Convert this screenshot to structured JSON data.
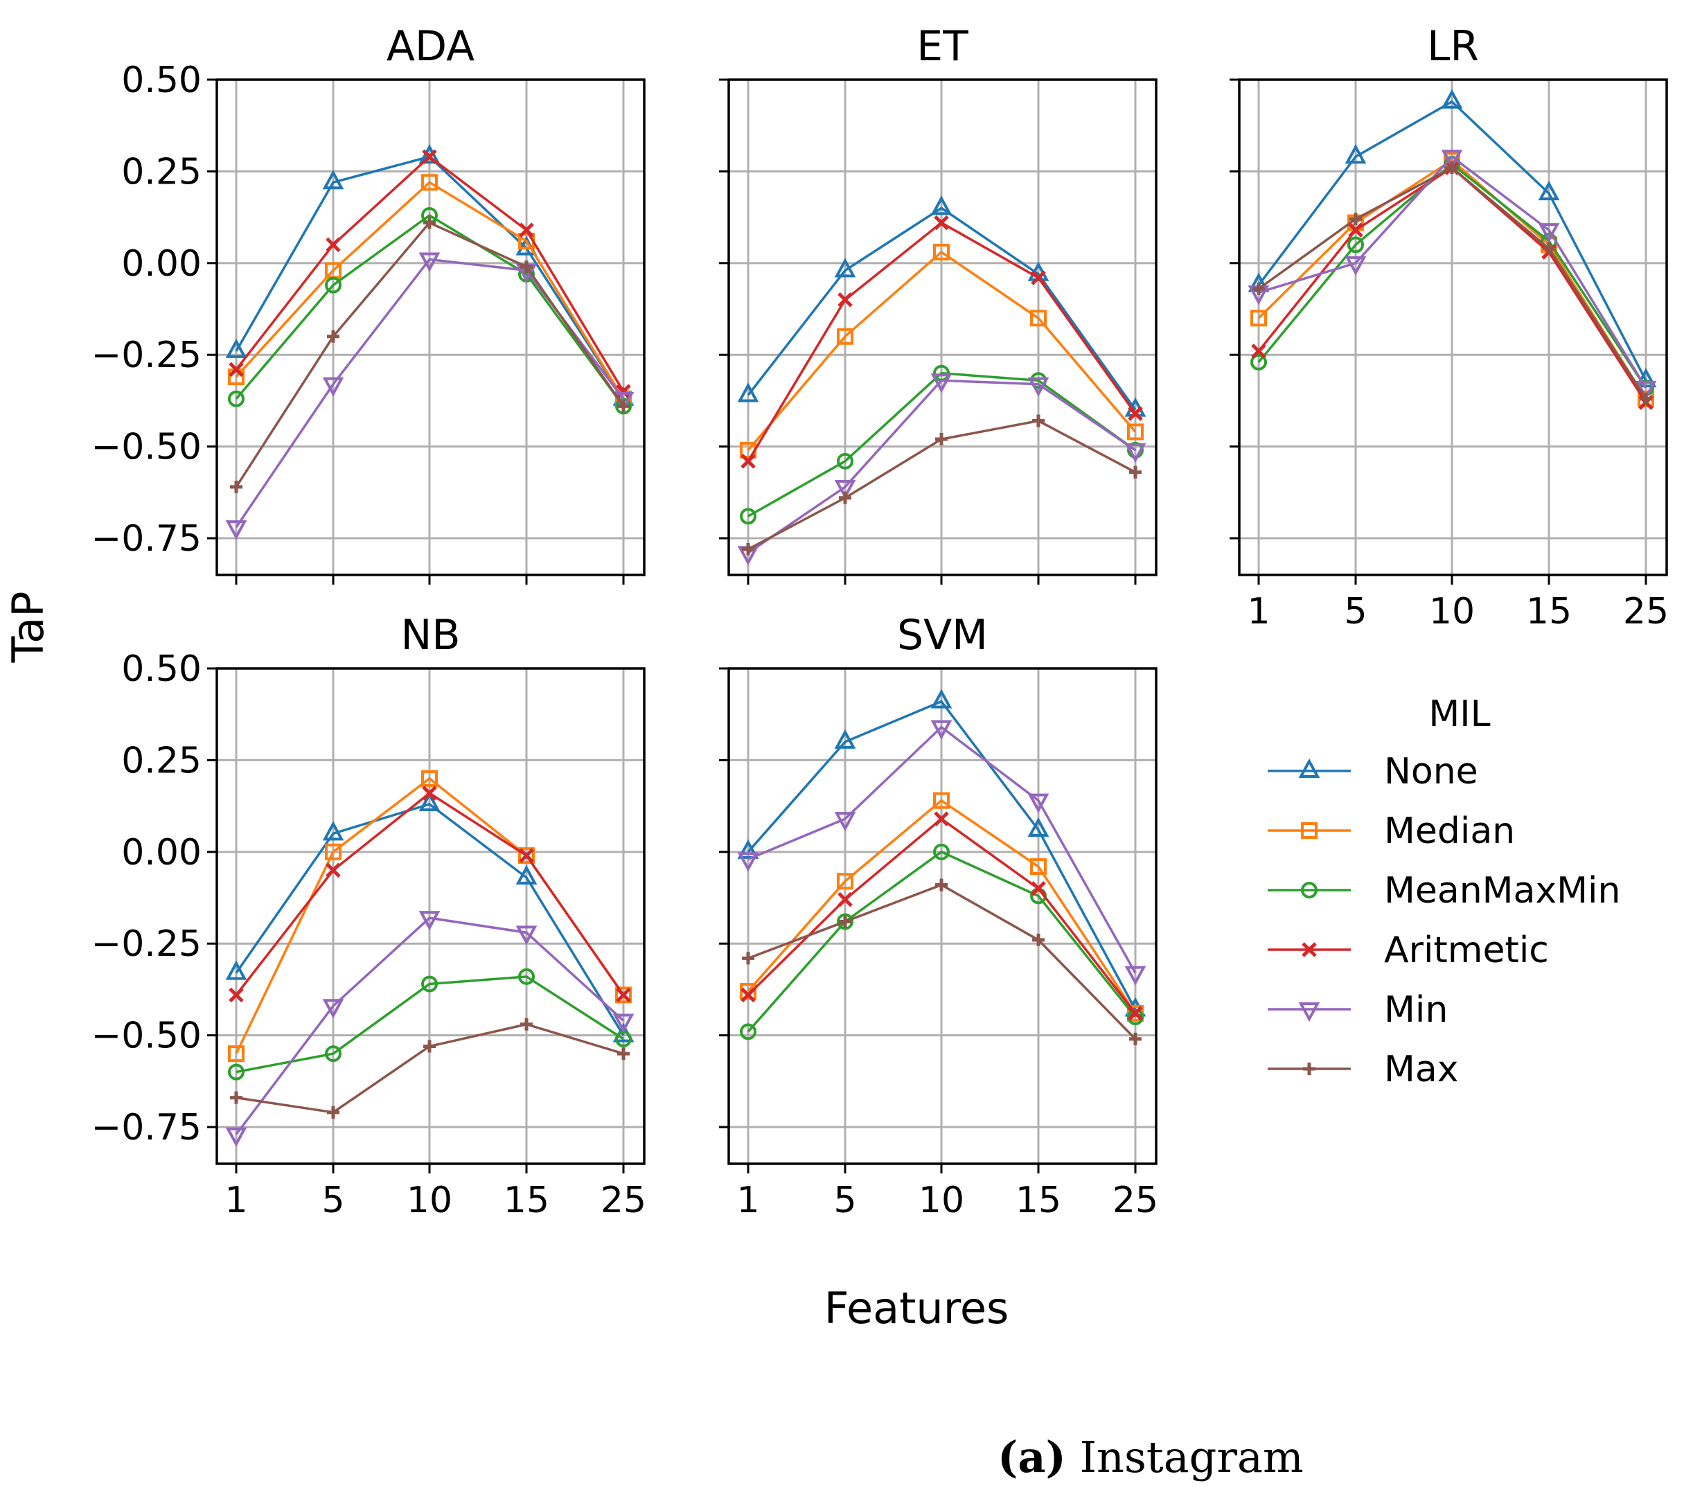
{
  "chart_data": {
    "type": "line",
    "ylabel": "TaP",
    "xlabel": "Features",
    "x": [
      1,
      5,
      10,
      15,
      25
    ],
    "x_tick_labels": [
      "1",
      "5",
      "10",
      "15",
      "25"
    ],
    "ylim": [
      -0.85,
      0.5
    ],
    "y_ticks": [
      0.5,
      0.25,
      0.0,
      -0.25,
      -0.5,
      -0.75
    ],
    "y_tick_labels": [
      "0.50",
      "0.25",
      "0.00",
      "−0.25",
      "−0.50",
      "−0.75"
    ],
    "grid": true,
    "legend": {
      "title": "MIL",
      "placement": "right of bottom row",
      "entries": [
        "None",
        "Median",
        "MeanMaxMin",
        "Aritmetic",
        "Min",
        "Max"
      ]
    },
    "series_styles": [
      {
        "name": "None",
        "color": "#1f77b4",
        "marker": "triangle-up"
      },
      {
        "name": "Median",
        "color": "#ff7f0e",
        "marker": "square"
      },
      {
        "name": "MeanMaxMin",
        "color": "#2ca02c",
        "marker": "circle"
      },
      {
        "name": "Aritmetic",
        "color": "#d62728",
        "marker": "x"
      },
      {
        "name": "Min",
        "color": "#9467bd",
        "marker": "triangle-down"
      },
      {
        "name": "Max",
        "color": "#8c564b",
        "marker": "plus"
      }
    ],
    "panels": [
      {
        "title": "ADA",
        "series": [
          {
            "name": "None",
            "values": [
              -0.24,
              0.22,
              0.29,
              0.04,
              -0.37
            ]
          },
          {
            "name": "Median",
            "values": [
              -0.31,
              -0.02,
              0.22,
              0.06,
              -0.37
            ]
          },
          {
            "name": "MeanMaxMin",
            "values": [
              -0.37,
              -0.06,
              0.13,
              -0.03,
              -0.39
            ]
          },
          {
            "name": "Aritmetic",
            "values": [
              -0.29,
              0.05,
              0.29,
              0.09,
              -0.35
            ]
          },
          {
            "name": "Min",
            "values": [
              -0.72,
              -0.33,
              0.01,
              -0.02,
              -0.37
            ]
          },
          {
            "name": "Max",
            "values": [
              -0.61,
              -0.2,
              0.11,
              -0.01,
              -0.39
            ]
          }
        ]
      },
      {
        "title": "ET",
        "series": [
          {
            "name": "None",
            "values": [
              -0.36,
              -0.02,
              0.15,
              -0.03,
              -0.4
            ]
          },
          {
            "name": "Median",
            "values": [
              -0.51,
              -0.2,
              0.03,
              -0.15,
              -0.46
            ]
          },
          {
            "name": "MeanMaxMin",
            "values": [
              -0.69,
              -0.54,
              -0.3,
              -0.32,
              -0.51
            ]
          },
          {
            "name": "Aritmetic",
            "values": [
              -0.54,
              -0.1,
              0.11,
              -0.04,
              -0.41
            ]
          },
          {
            "name": "Min",
            "values": [
              -0.79,
              -0.61,
              -0.32,
              -0.33,
              -0.51
            ]
          },
          {
            "name": "Max",
            "values": [
              -0.78,
              -0.64,
              -0.48,
              -0.43,
              -0.57
            ]
          }
        ]
      },
      {
        "title": "LR",
        "series": [
          {
            "name": "None",
            "values": [
              -0.06,
              0.29,
              0.44,
              0.19,
              -0.32
            ]
          },
          {
            "name": "Median",
            "values": [
              -0.15,
              0.11,
              0.28,
              0.05,
              -0.37
            ]
          },
          {
            "name": "MeanMaxMin",
            "values": [
              -0.27,
              0.05,
              0.27,
              0.06,
              -0.34
            ]
          },
          {
            "name": "Aritmetic",
            "values": [
              -0.24,
              0.09,
              0.26,
              0.03,
              -0.38
            ]
          },
          {
            "name": "Min",
            "values": [
              -0.08,
              0.0,
              0.29,
              0.09,
              -0.34
            ]
          },
          {
            "name": "Max",
            "values": [
              -0.07,
              0.12,
              0.26,
              0.04,
              -0.37
            ]
          }
        ]
      },
      {
        "title": "NB",
        "series": [
          {
            "name": "None",
            "values": [
              -0.33,
              0.05,
              0.13,
              -0.07,
              -0.5
            ]
          },
          {
            "name": "Median",
            "values": [
              -0.55,
              0.0,
              0.2,
              -0.01,
              -0.39
            ]
          },
          {
            "name": "MeanMaxMin",
            "values": [
              -0.6,
              -0.55,
              -0.36,
              -0.34,
              -0.51
            ]
          },
          {
            "name": "Aritmetic",
            "values": [
              -0.39,
              -0.05,
              0.16,
              -0.01,
              -0.39
            ]
          },
          {
            "name": "Min",
            "values": [
              -0.77,
              -0.42,
              -0.18,
              -0.22,
              -0.46
            ]
          },
          {
            "name": "Max",
            "values": [
              -0.67,
              -0.71,
              -0.53,
              -0.47,
              -0.55
            ]
          }
        ]
      },
      {
        "title": "SVM",
        "series": [
          {
            "name": "None",
            "values": [
              0.0,
              0.3,
              0.41,
              0.06,
              -0.43
            ]
          },
          {
            "name": "Median",
            "values": [
              -0.38,
              -0.08,
              0.14,
              -0.04,
              -0.44
            ]
          },
          {
            "name": "MeanMaxMin",
            "values": [
              -0.49,
              -0.19,
              0.0,
              -0.12,
              -0.45
            ]
          },
          {
            "name": "Aritmetic",
            "values": [
              -0.39,
              -0.13,
              0.09,
              -0.1,
              -0.44
            ]
          },
          {
            "name": "Min",
            "values": [
              -0.02,
              0.09,
              0.34,
              0.14,
              -0.33
            ]
          },
          {
            "name": "Max",
            "values": [
              -0.29,
              -0.19,
              -0.09,
              -0.24,
              -0.51
            ]
          }
        ]
      }
    ]
  },
  "caption": {
    "letter": "(a)",
    "text": "Instagram"
  }
}
